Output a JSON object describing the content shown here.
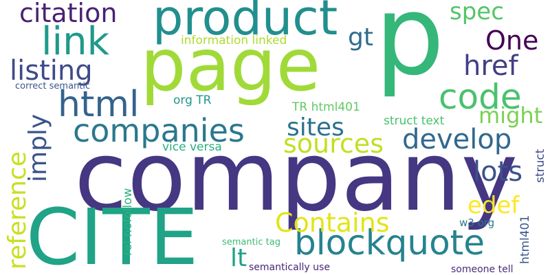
{
  "words": {
    "p": {
      "text": "p",
      "color": "#35b779"
    },
    "company": {
      "text": "company",
      "color": "#453781"
    },
    "cite": {
      "text": "CITE",
      "color": "#20a386"
    },
    "page": {
      "text": "page",
      "color": "#a0da39"
    },
    "product": {
      "text": "product",
      "color": "#218f8d"
    },
    "blockquote": {
      "text": "blockquote",
      "color": "#25838e"
    },
    "companies": {
      "text": "companies",
      "color": "#2a788e"
    },
    "code": {
      "text": "code",
      "color": "#4ac16d"
    },
    "html": {
      "text": "html",
      "color": "#33638d"
    },
    "link": {
      "text": "link",
      "color": "#1f9a8a"
    },
    "citation": {
      "text": "citation",
      "color": "#482173"
    },
    "contains": {
      "text": "Contains",
      "color": "#e3e419"
    },
    "listing": {
      "text": "listing",
      "color": "#3e4a89"
    },
    "sources": {
      "text": "sources",
      "color": "#c2df23"
    },
    "develop": {
      "text": "develop",
      "color": "#31688e"
    },
    "sites": {
      "text": "sites",
      "color": "#2c718e"
    },
    "href": {
      "text": "href",
      "color": "#433e85"
    },
    "one": {
      "text": "One",
      "color": "#440154"
    },
    "might": {
      "text": "might",
      "color": "#7ad151"
    },
    "reference": {
      "text": "reference",
      "color": "#c8e020"
    },
    "imply": {
      "text": "imply",
      "color": "#3b528b"
    },
    "gt": {
      "text": "gt",
      "color": "#2f6c8e"
    },
    "spec": {
      "text": "spec",
      "color": "#54c568"
    },
    "lots": {
      "text": "lots",
      "color": "#3b528b"
    },
    "edef": {
      "text": "edef",
      "color": "#fde725"
    },
    "lt": {
      "text": "lt",
      "color": "#1fa187"
    },
    "struct": {
      "text": "struct",
      "color": "#3e4989"
    },
    "information_linked": {
      "text": "information linked",
      "color": "#addc30"
    },
    "html401": {
      "text": "html401",
      "color": "#38598c"
    },
    "org_tr": {
      "text": "org TR",
      "color": "#1f968b"
    },
    "tr_html401": {
      "text": "TR html401",
      "color": "#5ec962"
    },
    "struct_text": {
      "text": "struct text",
      "color": "#48c16e"
    },
    "vice_versa": {
      "text": "vice versa",
      "color": "#29af7f"
    },
    "rel_nofollow": {
      "text": "rel nofollow",
      "color": "#2db27d"
    },
    "correct_semantic": {
      "text": "correct semantic",
      "color": "#39568c"
    },
    "w3_org": {
      "text": "w3 org",
      "color": "#2a788e"
    },
    "semantic_tag": {
      "text": "semantic tag",
      "color": "#3dbc74"
    },
    "semantically_use": {
      "text": "semantically use",
      "color": "#482475"
    },
    "someone_tell": {
      "text": "someone tell",
      "color": "#472c7a"
    }
  }
}
